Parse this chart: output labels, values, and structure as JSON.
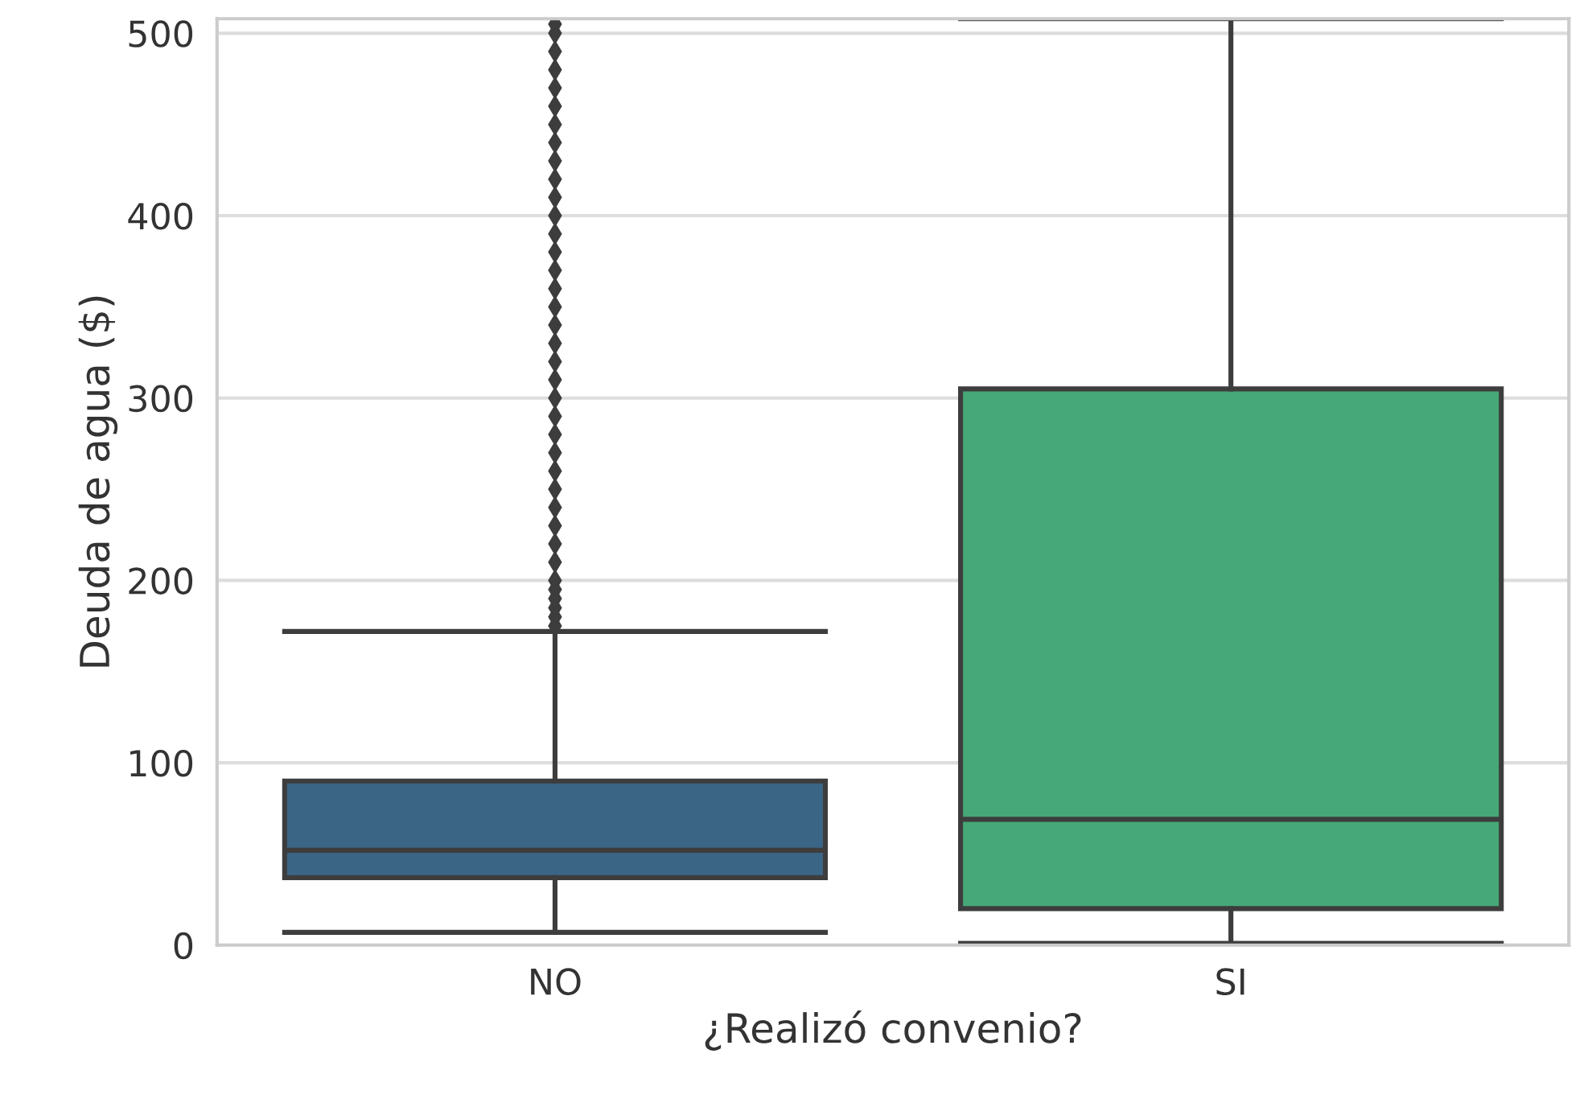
{
  "chart_data": {
    "type": "box",
    "xlabel": "¿Realizó convenio?",
    "ylabel": "Deuda de agua ($)",
    "categories": [
      "NO",
      "SI"
    ],
    "colors": [
      "#3b6585",
      "#46a878"
    ],
    "boxes": [
      {
        "low": 7,
        "q1": 37,
        "median": 52,
        "q3": 90,
        "high": 172,
        "outliers": [
          175,
          180,
          185,
          190,
          195,
          200,
          210,
          220,
          230,
          240,
          250,
          260,
          270,
          280,
          290,
          300,
          310,
          320,
          330,
          340,
          350,
          360,
          370,
          380,
          390,
          400,
          410,
          420,
          430,
          440,
          450,
          460,
          470,
          480,
          490,
          500,
          505
        ]
      },
      {
        "low": 1,
        "q1": 20,
        "median": 69,
        "q3": 305,
        "high": 508
      }
    ],
    "ylim": [
      0,
      508
    ],
    "yticks": [
      0,
      100,
      200,
      300,
      400,
      500
    ],
    "grid": "y",
    "marker": "diamond"
  }
}
